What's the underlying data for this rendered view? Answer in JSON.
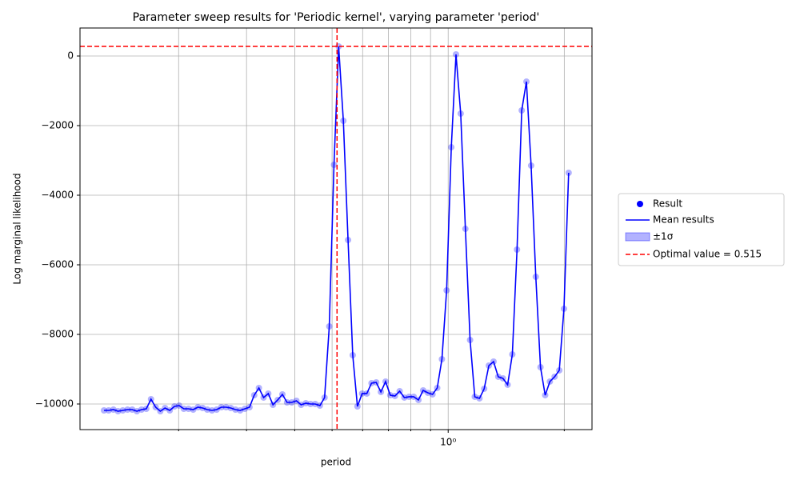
{
  "chart_data": {
    "type": "scatter",
    "title": "Parameter sweep results for 'Periodic kernel', varying parameter 'period'",
    "x_label": "period",
    "y_label": "Log marginal likelihood",
    "xscale": "log",
    "xlim": [
      0.111,
      2.36
    ],
    "ylim": [
      -10736,
      805
    ],
    "xticks": [
      {
        "value": 1,
        "label": "10⁰"
      }
    ],
    "x_minor_ticks": [
      0.2,
      0.3,
      0.4,
      0.5,
      0.6,
      0.7,
      0.8,
      0.9,
      2
    ],
    "yticks": [
      0,
      {
        "value": -2000,
        "label": "−2000"
      },
      {
        "value": -4000,
        "label": "−4000"
      },
      {
        "value": -6000,
        "label": "−6000"
      },
      {
        "value": -8000,
        "label": "−8000"
      },
      {
        "value": -10000,
        "label": "−10000"
      }
    ],
    "grid": true,
    "color": "#0000ff",
    "optimal_color": "#ff0000",
    "optimal_x": 0.515,
    "optimal_y": 276,
    "legend": [
      "Result",
      "Mean results",
      "±1σ",
      "Optimal value = 0.515"
    ],
    "legend_position": "right",
    "x": [
      0.1281,
      0.1317,
      0.1355,
      0.1393,
      0.1433,
      0.1474,
      0.1516,
      0.1559,
      0.1603,
      0.1649,
      0.1696,
      0.1744,
      0.1793,
      0.1844,
      0.1897,
      0.1951,
      0.2006,
      0.2063,
      0.2122,
      0.2182,
      0.2244,
      0.2308,
      0.2373,
      0.2441,
      0.251,
      0.2581,
      0.2655,
      0.273,
      0.2808,
      0.2888,
      0.297,
      0.3054,
      0.3141,
      0.323,
      0.3322,
      0.3416,
      0.3513,
      0.3613,
      0.3716,
      0.3821,
      0.393,
      0.4041,
      0.4156,
      0.4274,
      0.4396,
      0.4521,
      0.4649,
      0.4781,
      0.4917,
      0.5057,
      0.52,
      0.5348,
      0.55,
      0.5656,
      0.5817,
      0.5982,
      0.6152,
      0.6327,
      0.6507,
      0.6692,
      0.6882,
      0.7077,
      0.7278,
      0.7485,
      0.7698,
      0.7917,
      0.8142,
      0.8373,
      0.8611,
      0.8856,
      0.9108,
      0.9367,
      0.9633,
      0.9907,
      1.0188,
      1.0478,
      1.0776,
      1.1082,
      1.1397,
      1.1721,
      1.2054,
      1.2397,
      1.2749,
      1.3111,
      1.3484,
      1.3867,
      1.4261,
      1.4667,
      1.5084,
      1.5513,
      1.5954,
      1.6407,
      1.6873,
      1.7353,
      1.7846,
      1.8353,
      1.8875,
      1.9411,
      1.9963,
      2.053
    ],
    "values": [
      -10184,
      -10184,
      -10161,
      -10207,
      -10184,
      -10161,
      -10161,
      -10207,
      -10161,
      -10138,
      -9862,
      -10092,
      -10207,
      -10115,
      -10184,
      -10069,
      -10046,
      -10138,
      -10138,
      -10161,
      -10092,
      -10115,
      -10161,
      -10184,
      -10161,
      -10092,
      -10092,
      -10115,
      -10161,
      -10184,
      -10138,
      -10092,
      -9747,
      -9540,
      -9816,
      -9701,
      -10023,
      -9885,
      -9724,
      -9954,
      -9954,
      -9908,
      -10023,
      -9977,
      -10000,
      -10000,
      -10046,
      -9816,
      -7770,
      -3126,
      276,
      -1862,
      -5287,
      -8598,
      -10069,
      -9701,
      -9701,
      -9402,
      -9379,
      -9655,
      -9356,
      -9747,
      -9770,
      -9632,
      -9816,
      -9793,
      -9793,
      -9885,
      -9609,
      -9678,
      -9724,
      -9540,
      -8713,
      -6736,
      -2621,
      46,
      -1655,
      -4966,
      -8161,
      -9793,
      -9839,
      -9563,
      -8897,
      -8782,
      -9218,
      -9264,
      -9448,
      -8575,
      -5563,
      -1563,
      -736,
      -3149,
      -6345,
      -8943,
      -9747,
      -9356,
      -9218,
      -9034,
      -7264,
      -3356
    ]
  }
}
